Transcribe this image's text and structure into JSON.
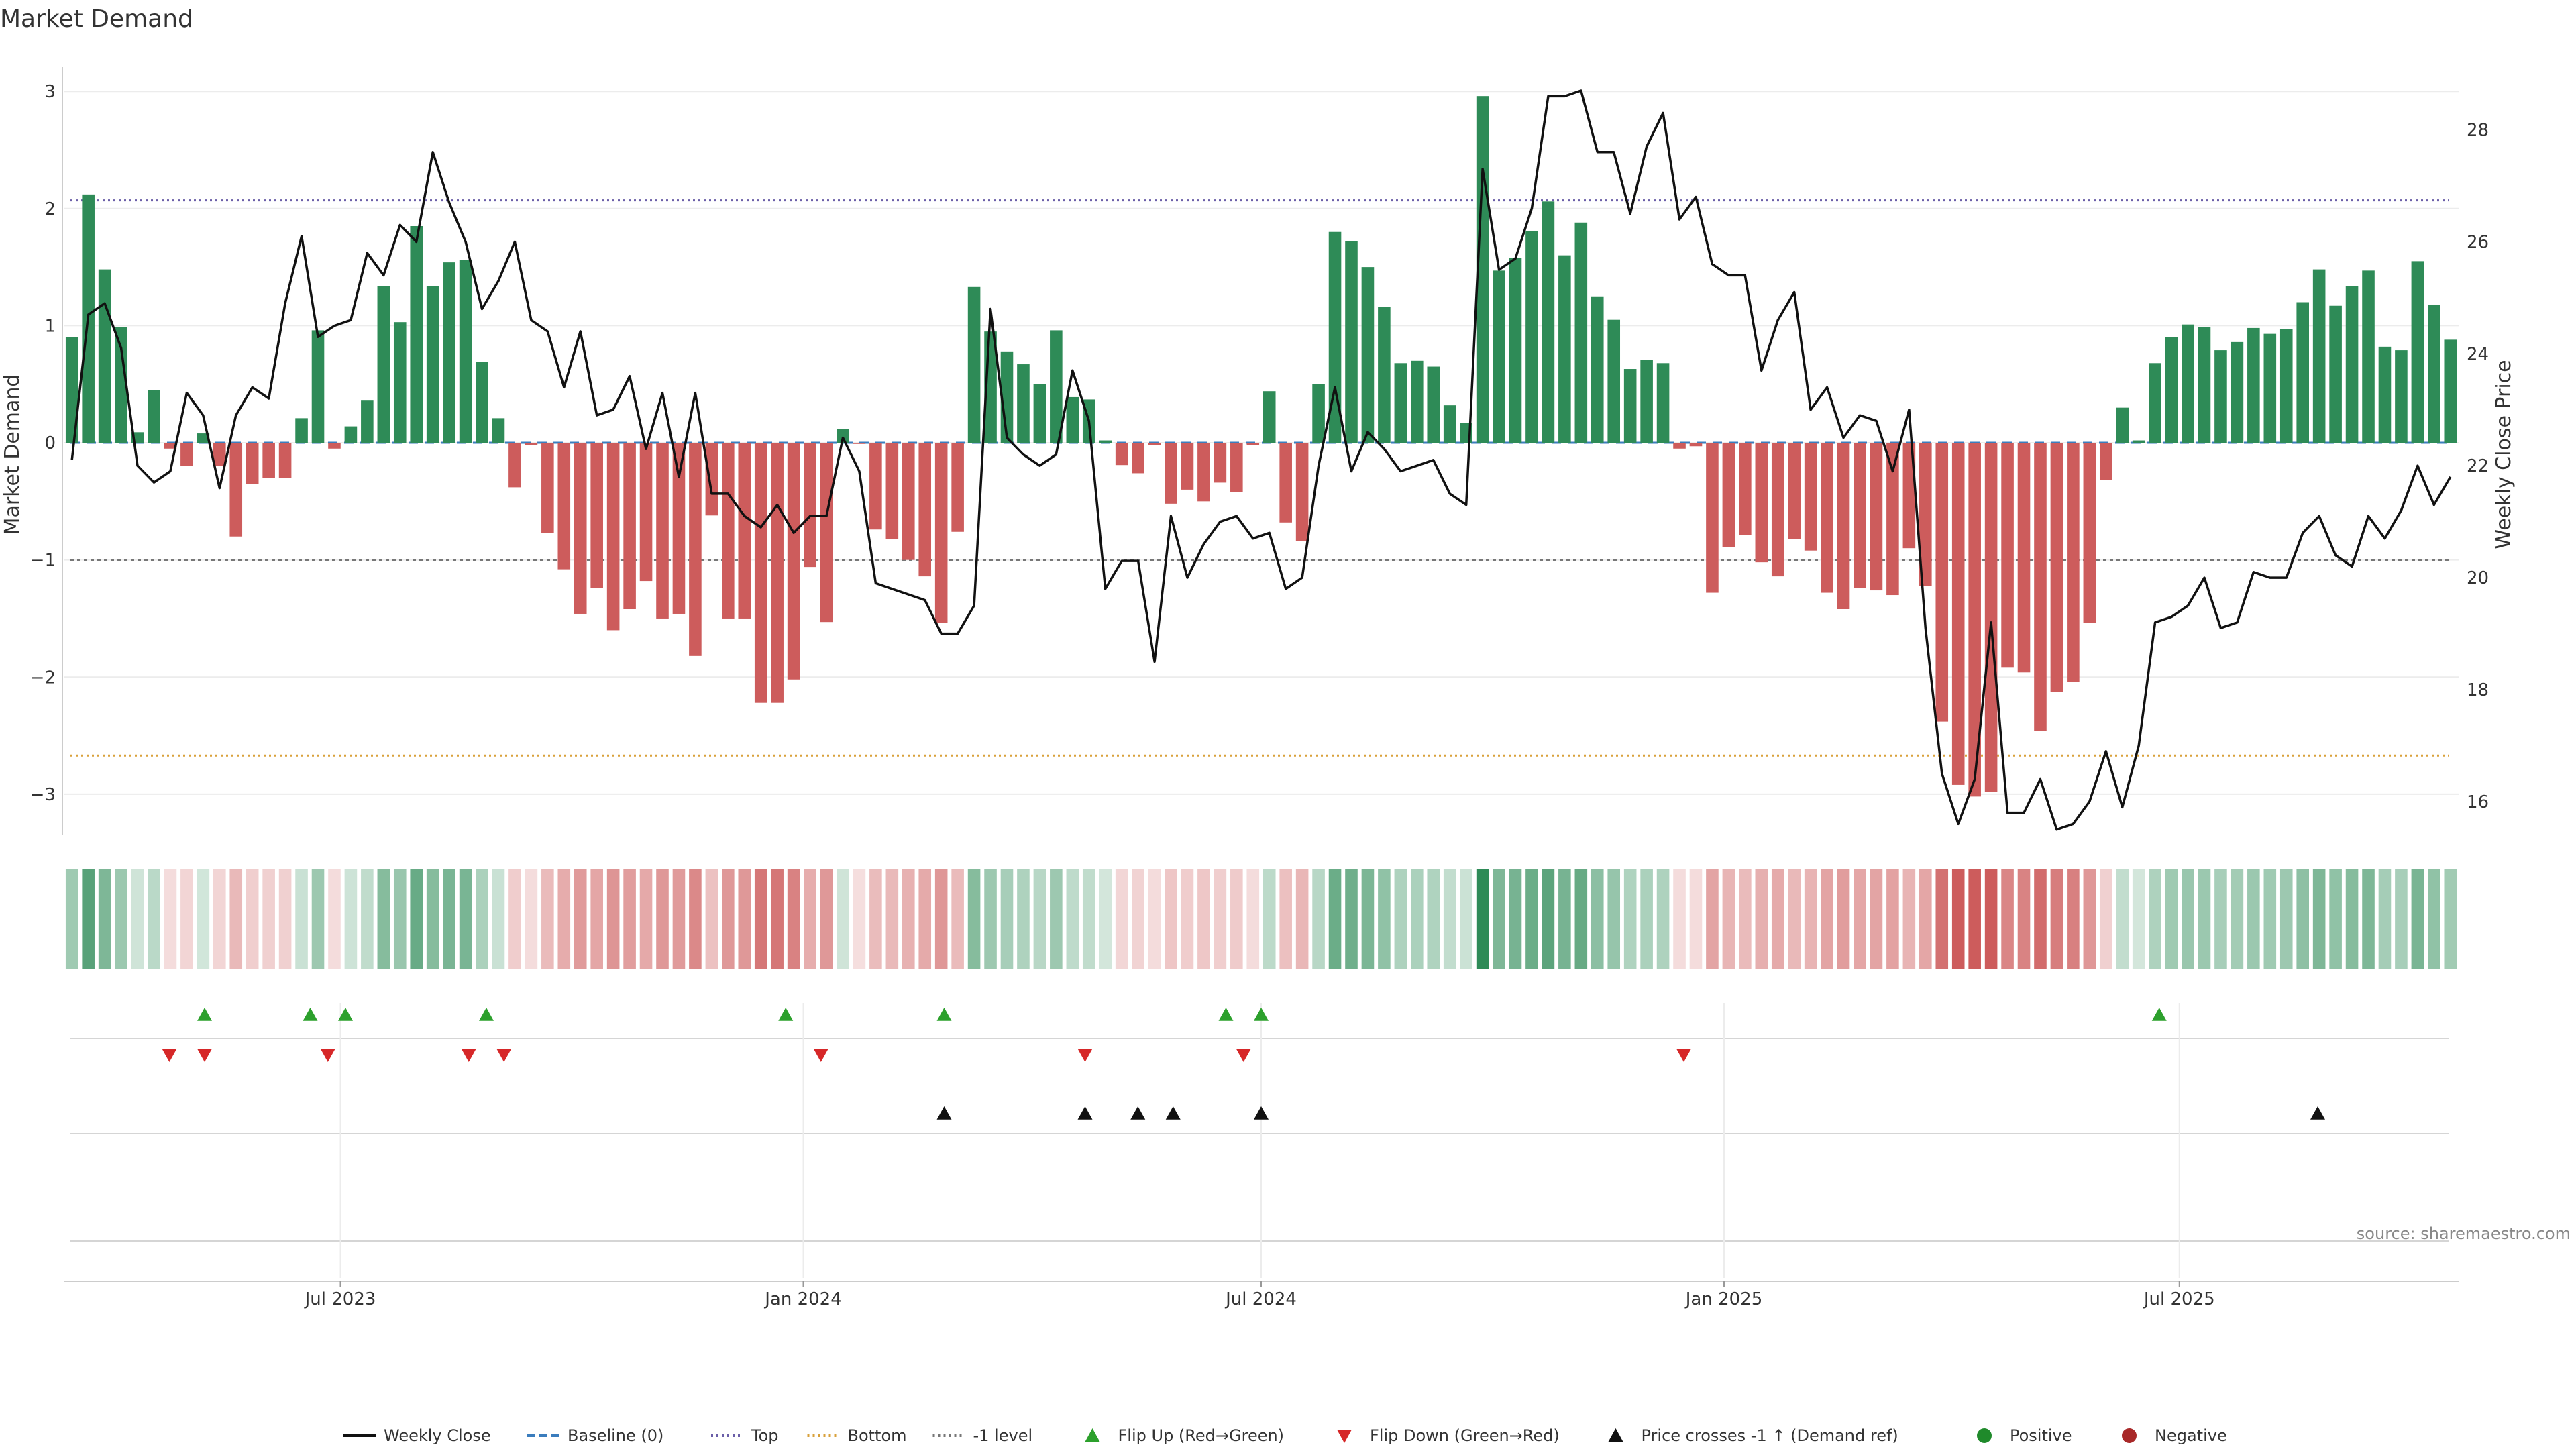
{
  "chart_data": {
    "type": "bar",
    "title": "Market Demand",
    "ylabel": "Market Demand",
    "y2label": "Weekly Close Price",
    "ylim": [
      -3.35,
      3.15
    ],
    "y2lim": [
      15.4,
      29.0
    ],
    "yticks": [
      3,
      2,
      1,
      0,
      -1,
      -2,
      -3
    ],
    "yticklabels": [
      "3",
      "2",
      "1",
      "0",
      "−1",
      "−2",
      "−3"
    ],
    "y2ticks": [
      16,
      18,
      20,
      22,
      24,
      26,
      28
    ],
    "x_start": "2023-03-13",
    "x_end": "2025-10-20",
    "xticks": [
      {
        "date": "2023-07-01",
        "label": "Jul 2023"
      },
      {
        "date": "2024-01-01",
        "label": "Jan 2024"
      },
      {
        "date": "2024-07-01",
        "label": "Jul 2024"
      },
      {
        "date": "2025-01-01",
        "label": "Jan 2025"
      },
      {
        "date": "2025-07-01",
        "label": "Jul 2025"
      }
    ],
    "levels": {
      "top": 2.07,
      "bottom": -2.67,
      "minus_one": -1.0,
      "baseline": 0
    },
    "start_date": "2023-03-13",
    "interval_days": 7,
    "demand": [
      0.9,
      2.12,
      1.48,
      0.99,
      0.09,
      0.45,
      -0.05,
      -0.2,
      0.08,
      -0.2,
      -0.8,
      -0.35,
      -0.3,
      -0.3,
      0.21,
      0.96,
      -0.05,
      0.14,
      0.36,
      1.34,
      1.03,
      1.85,
      1.34,
      1.54,
      1.56,
      0.69,
      0.21,
      -0.38,
      -0.02,
      -0.77,
      -1.08,
      -1.46,
      -1.24,
      -1.6,
      -1.42,
      -1.18,
      -1.5,
      -1.46,
      -1.82,
      -0.62,
      -1.5,
      -1.5,
      -2.22,
      -2.22,
      -2.02,
      -1.06,
      -1.53,
      0.12,
      -0.01,
      -0.74,
      -0.82,
      -1.0,
      -1.14,
      -1.54,
      -0.76,
      1.33,
      0.95,
      0.78,
      0.67,
      0.5,
      0.96,
      0.39,
      0.37,
      0.02,
      -0.19,
      -0.26,
      -0.02,
      -0.52,
      -0.4,
      -0.5,
      -0.34,
      -0.42,
      -0.02,
      0.44,
      -0.68,
      -0.84,
      0.5,
      1.8,
      1.72,
      1.5,
      1.16,
      0.68,
      0.7,
      0.65,
      0.32,
      0.17,
      2.96,
      1.47,
      1.58,
      1.81,
      2.06,
      1.6,
      1.88,
      1.25,
      1.05,
      0.63,
      0.71,
      0.68,
      -0.05,
      -0.03,
      -1.28,
      -0.89,
      -0.79,
      -1.02,
      -1.14,
      -0.82,
      -0.92,
      -1.28,
      -1.42,
      -1.24,
      -1.26,
      -1.3,
      -0.9,
      -1.22,
      -2.38,
      -2.92,
      -3.02,
      -2.98,
      -1.92,
      -1.96,
      -2.46,
      -2.13,
      -2.04,
      -1.54,
      -0.32,
      0.3,
      0.02,
      0.68,
      0.9,
      1.01,
      0.99,
      0.79,
      0.86,
      0.98,
      0.93,
      0.97,
      1.2,
      1.48,
      1.17,
      1.34,
      1.47,
      0.82,
      0.79,
      1.55,
      1.18,
      0.88
    ],
    "weekly_close": [
      22.1,
      24.7,
      24.9,
      24.1,
      22.0,
      21.7,
      21.9,
      23.3,
      22.9,
      21.6,
      22.9,
      23.4,
      23.2,
      24.9,
      26.1,
      24.3,
      24.5,
      24.6,
      25.8,
      25.4,
      26.3,
      26.0,
      27.6,
      26.7,
      26.0,
      24.8,
      25.3,
      26.0,
      24.6,
      24.4,
      23.4,
      24.4,
      22.9,
      23.0,
      23.6,
      22.3,
      23.3,
      21.8,
      23.3,
      21.5,
      21.5,
      21.1,
      20.9,
      21.3,
      20.8,
      21.1,
      21.1,
      22.5,
      21.9,
      19.9,
      19.8,
      19.7,
      19.6,
      19.0,
      19.0,
      19.5,
      24.8,
      22.5,
      22.2,
      22.0,
      22.2,
      23.7,
      22.8,
      19.8,
      20.3,
      20.3,
      18.5,
      21.1,
      20.0,
      20.6,
      21.0,
      21.1,
      20.7,
      20.8,
      19.8,
      20.0,
      22.0,
      23.4,
      21.9,
      22.6,
      22.3,
      21.9,
      22.0,
      22.1,
      21.5,
      21.3,
      27.3,
      25.5,
      25.7,
      26.6,
      28.6,
      28.6,
      28.7,
      27.6,
      27.6,
      26.5,
      27.7,
      28.3,
      26.4,
      26.8,
      25.6,
      25.4,
      25.4,
      23.7,
      24.6,
      25.1,
      23.0,
      23.4,
      22.5,
      22.9,
      22.8,
      21.9,
      23.0,
      19.1,
      16.5,
      15.6,
      16.4,
      19.2,
      15.8,
      15.8,
      16.4,
      15.5,
      15.6,
      16.0,
      16.9,
      15.9,
      17.0,
      19.2,
      19.3,
      19.5,
      20.0,
      19.1,
      19.2,
      20.1,
      20.0,
      20.0,
      20.8,
      21.1,
      20.4,
      20.2,
      21.1,
      20.7,
      21.2,
      22.0,
      21.3,
      21.8
    ],
    "flip_up": [
      "2023-05-08",
      "2023-06-19",
      "2023-07-03",
      "2023-08-28",
      "2023-12-25",
      "2024-02-26",
      "2024-06-17",
      "2024-07-01",
      "2025-06-23"
    ],
    "flip_down": [
      "2023-04-24",
      "2023-05-08",
      "2023-06-26",
      "2023-08-21",
      "2023-09-04",
      "2024-01-08",
      "2024-04-22",
      "2024-06-24",
      "2024-12-16"
    ],
    "price_cross": [
      "2024-02-26",
      "2024-04-22",
      "2024-05-13",
      "2024-05-27",
      "2024-07-01",
      "2025-08-25"
    ],
    "legend": [
      {
        "label": "Weekly Close",
        "kind": "line",
        "color": "#111111"
      },
      {
        "label": "Baseline (0)",
        "kind": "dash",
        "color": "#3b7dbd"
      },
      {
        "label": "Top",
        "kind": "dot",
        "color": "#6b5ea8"
      },
      {
        "label": "Bottom",
        "kind": "dot",
        "color": "#d9a13b"
      },
      {
        "label": "-1 level",
        "kind": "dot",
        "color": "#777777"
      },
      {
        "label": "Flip Up (Red→Green)",
        "kind": "tri-up",
        "color": "#2ca02c"
      },
      {
        "label": "Flip Down (Green→Red)",
        "kind": "tri-down",
        "color": "#d62728"
      },
      {
        "label": "Price crosses -1 ↑ (Demand ref)",
        "kind": "tri-up",
        "color": "#111111"
      },
      {
        "label": "Positive",
        "kind": "circle",
        "color": "#1f8a2b"
      },
      {
        "label": "Negative",
        "kind": "circle",
        "color": "#a82828"
      }
    ]
  },
  "source": "source: sharemaestro.com",
  "colors": {
    "positive": "#2e8b57",
    "negative": "#cd5c5c",
    "line": "#111111",
    "top": "#6b5ea8",
    "bottom": "#d9a13b",
    "minus_one": "#777777",
    "baseline": "#3b7dbd",
    "flip_up": "#2ca02c",
    "flip_down": "#d62728",
    "cross": "#111111"
  }
}
